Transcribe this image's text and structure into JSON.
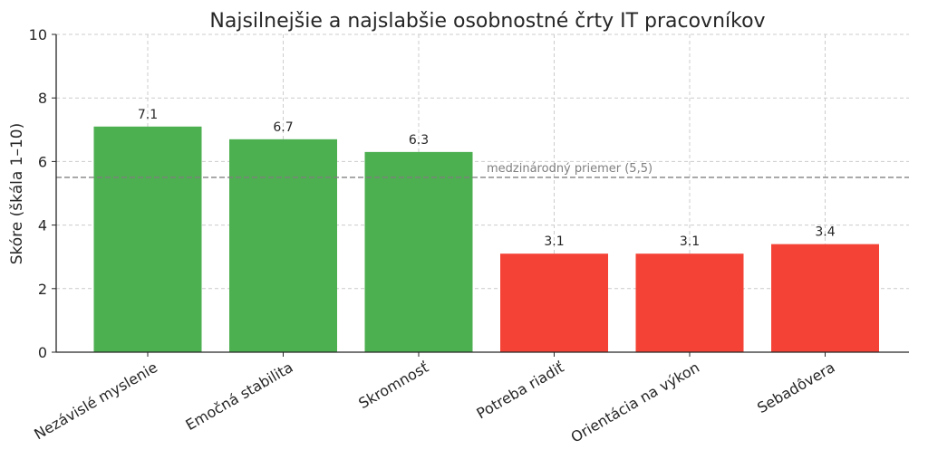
{
  "chart_data": {
    "type": "bar",
    "title": "Najsilnejšie a najslabšie osobnostné črty IT pracovníkov",
    "xlabel": "",
    "ylabel": "Skóre (škála 1–10)",
    "categories": [
      "Nezávislé myslenie",
      "Emočná stabilita",
      "Skromnosť",
      "Potreba riadiť",
      "Orientácia na výkon",
      "Sebadôvera"
    ],
    "values": [
      7.1,
      6.7,
      6.3,
      3.1,
      3.1,
      3.4
    ],
    "value_labels": [
      "7.1",
      "6.7",
      "6.3",
      "3.1",
      "3.1",
      "3.4"
    ],
    "bar_colors": [
      "#4caf50",
      "#4caf50",
      "#4caf50",
      "#f44336",
      "#f44336",
      "#f44336"
    ],
    "ylim": [
      0,
      10
    ],
    "yticks": [
      0,
      2,
      4,
      6,
      8,
      10
    ],
    "grid": true,
    "reference_line": {
      "value": 5.5,
      "label": "medzinárodný priemer (5,5)",
      "color": "#808080"
    }
  }
}
